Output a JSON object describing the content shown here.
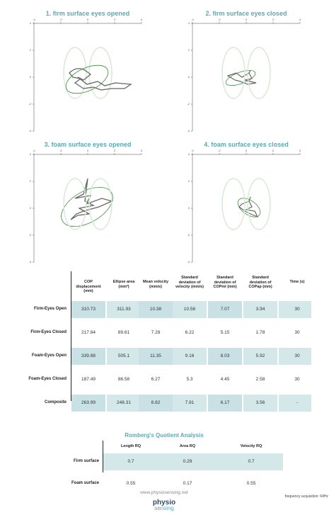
{
  "plots": {
    "ticks_x": [
      -4,
      -2,
      0,
      2,
      4
    ],
    "ticks_y": [
      4,
      2,
      0,
      -2,
      -4
    ],
    "titles": [
      "1. firm surface eyes opened",
      "2. firm surface eyes closed",
      "3. foam surface eyes opened",
      "4. foam surface eyes closed"
    ]
  },
  "table": {
    "columns": [
      "COP displacement (mm)",
      "Ellipse area (mm²)",
      "Mean velocity (mm/s)",
      "Standard deviation of velocity (mm/s)",
      "Standard deviation of COPml (mm)",
      "Standard deviation of COPap (mm)",
      "Time (s)"
    ],
    "rows": [
      [
        "Firm-Eyes Open",
        310.73,
        311.93,
        10.38,
        10.58,
        7.07,
        3.94,
        30
      ],
      [
        "Firm-Eyes Closed",
        217.84,
        89.61,
        7.28,
        6.22,
        5.15,
        1.78,
        30
      ],
      [
        "Foam-Eyes Open",
        339.88,
        505.1,
        11.35,
        9.16,
        8.03,
        5.92,
        30
      ],
      [
        "Foam-Eyes Closed",
        187.49,
        86.58,
        6.27,
        5.3,
        4.45,
        2.58,
        30
      ],
      [
        "Composite",
        263.99,
        248.31,
        8.82,
        7.81,
        6.17,
        3.56,
        "-"
      ]
    ]
  },
  "romberg": {
    "title": "Romberg's Quotient Analysis",
    "columns": [
      "Length RQ",
      "Area RQ",
      "Velocity RQ"
    ],
    "rows": [
      [
        "Firm surface",
        0.7,
        0.29,
        0.7
      ],
      [
        "Foam surface",
        0.55,
        0.17,
        0.55
      ]
    ]
  },
  "footer": {
    "frequency": "frequency acquisition: 64Hz",
    "url": "www.physiosensing.net",
    "logo_top": "physio",
    "logo_bottom": "sensing"
  }
}
